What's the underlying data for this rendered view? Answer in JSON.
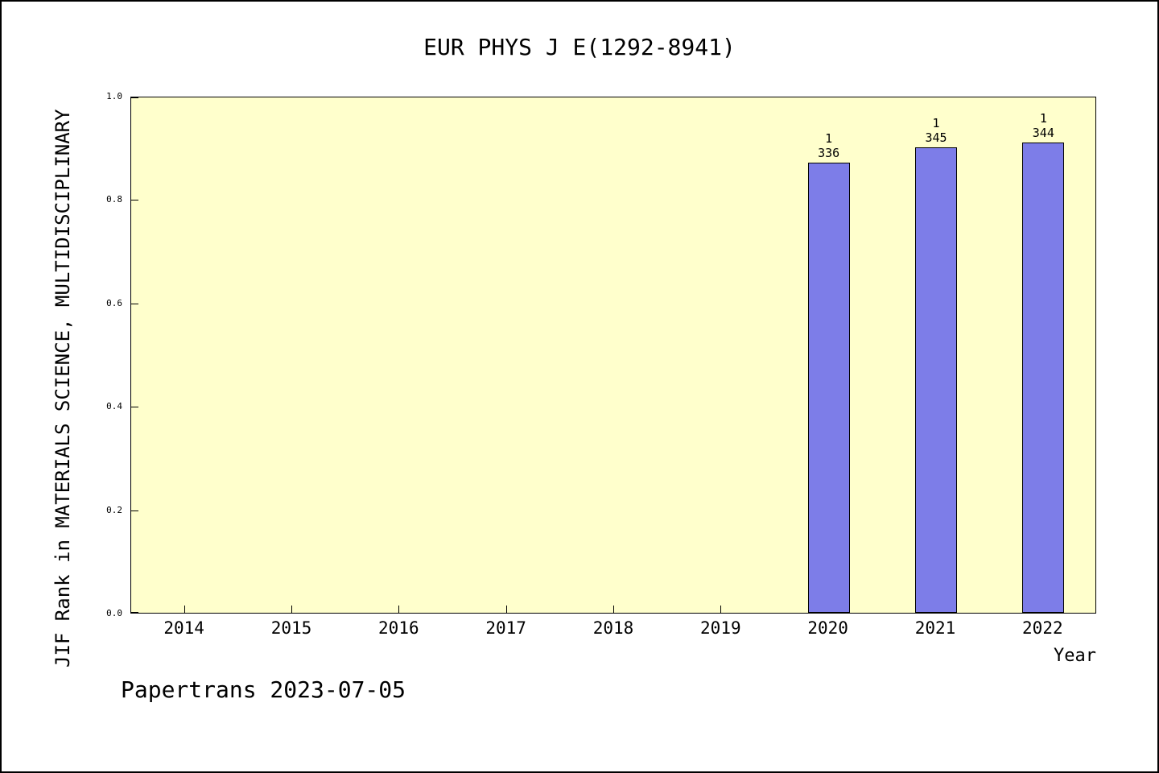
{
  "chart_data": {
    "type": "bar",
    "title": "EUR PHYS J E(1292-8941)",
    "xlabel": "Year",
    "ylabel": "JIF Rank in MATERIALS SCIENCE, MULTIDISCIPLINARY",
    "categories": [
      "2014",
      "2015",
      "2016",
      "2017",
      "2018",
      "2019",
      "2020",
      "2021",
      "2022"
    ],
    "ylim": [
      0,
      1
    ],
    "yticks": [
      "0.0",
      "0.2",
      "0.4",
      "0.6",
      "0.8",
      "1.0"
    ],
    "grid": false,
    "legend": "none",
    "bars": [
      {
        "category": "2020",
        "height": 0.87,
        "rank": "1",
        "total": "336"
      },
      {
        "category": "2021",
        "height": 0.9,
        "rank": "1",
        "total": "345"
      },
      {
        "category": "2022",
        "height": 0.91,
        "rank": "1",
        "total": "344"
      }
    ],
    "colors": {
      "plot_background": "#ffffcc",
      "bar_fill": "#7d7de8",
      "bar_border": "#000000",
      "text": "#000000"
    }
  },
  "footer": {
    "text": "Papertrans 2023-07-05"
  }
}
